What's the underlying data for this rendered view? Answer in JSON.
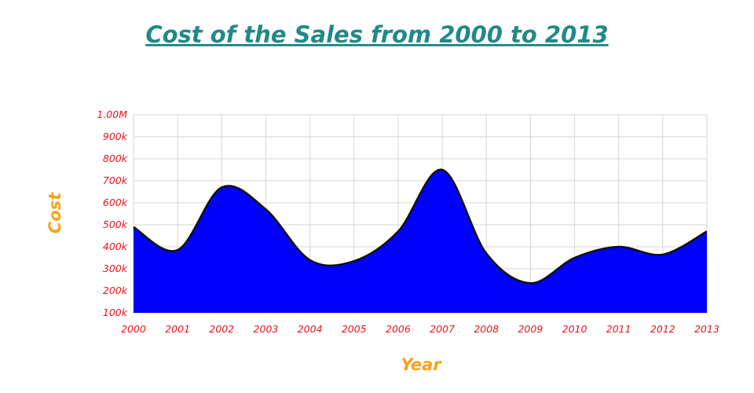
{
  "chart_data": {
    "type": "area",
    "title": "Cost of the Sales from 2000 to 2013",
    "xlabel": "Year",
    "ylabel": "Cost",
    "x": [
      "2000",
      "2001",
      "2002",
      "2003",
      "2004",
      "2005",
      "2006",
      "2007",
      "2008",
      "2009",
      "2010",
      "2011",
      "2012",
      "2013"
    ],
    "series": [
      {
        "values": [
          490000,
          385000,
          670000,
          570000,
          340000,
          335000,
          470000,
          750000,
          370000,
          235000,
          350000,
          400000,
          365000,
          470000
        ]
      }
    ],
    "ylim": [
      100000,
      1000000
    ],
    "y_ticks": [
      "100k",
      "200k",
      "300k",
      "400k",
      "500k",
      "600k",
      "700k",
      "800k",
      "900k",
      "1.00M"
    ],
    "grid": true,
    "legend": "none",
    "colors": {
      "area_fill": "#0000ff",
      "area_line": "#111111",
      "title": "#1f8a86",
      "axis_title": "#f5a418",
      "tick_label": "#e8141e",
      "grid": "#d6d6d6"
    }
  }
}
